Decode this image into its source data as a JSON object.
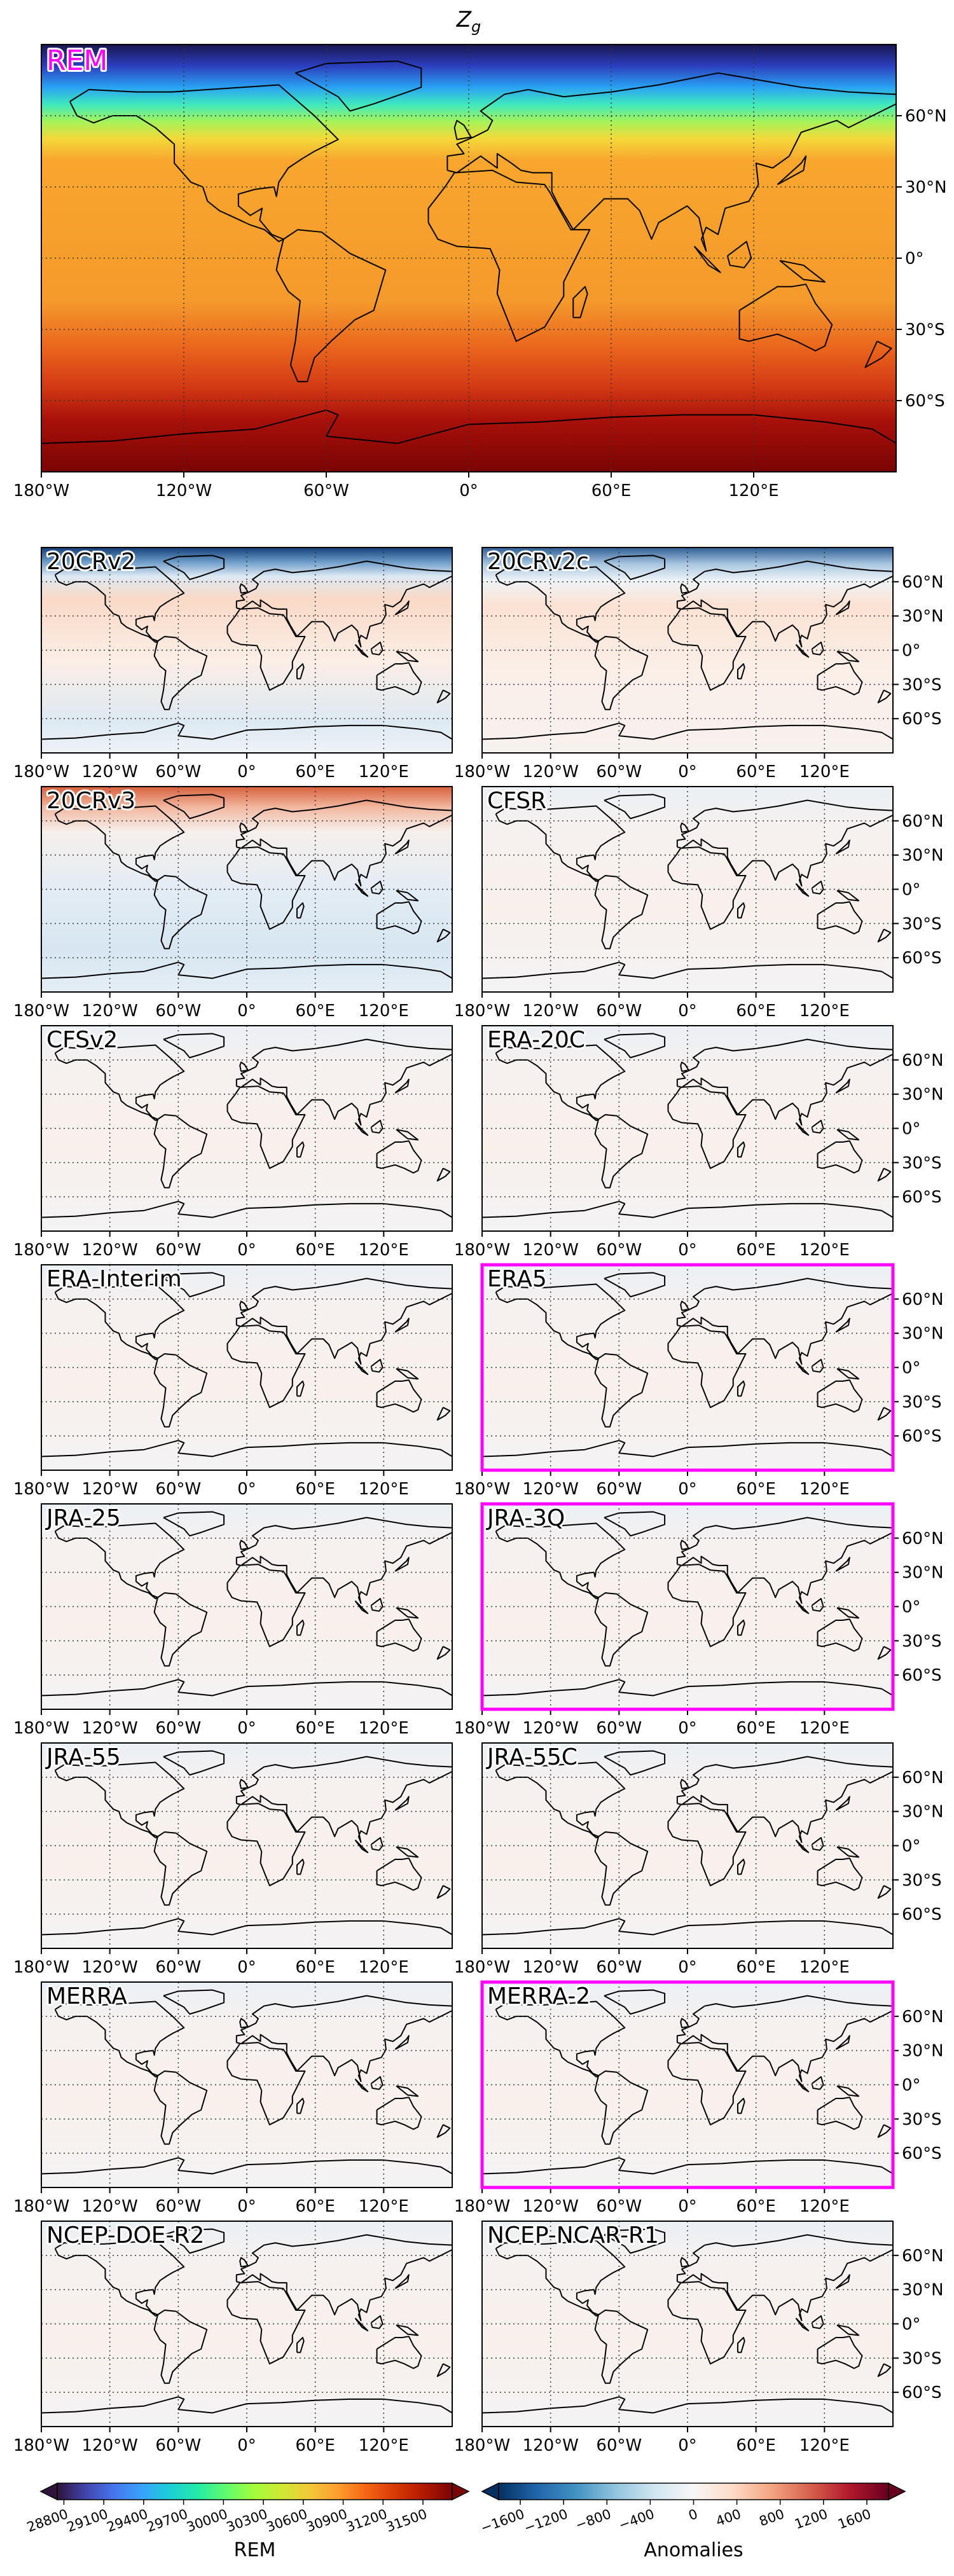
{
  "title": {
    "base": "Z",
    "subscript": "g"
  },
  "lon_lim": [
    -180,
    180
  ],
  "lat_lim": [
    -90,
    90
  ],
  "lon_ticks": [
    {
      "value": -180,
      "label": "180°W"
    },
    {
      "value": -120,
      "label": "120°W"
    },
    {
      "value": -60,
      "label": "60°W"
    },
    {
      "value": 0,
      "label": "0°"
    },
    {
      "value": 60,
      "label": "60°E"
    },
    {
      "value": 120,
      "label": "120°E"
    }
  ],
  "lat_ticks": [
    {
      "value": 60,
      "label": "60°N"
    },
    {
      "value": 30,
      "label": "30°N"
    },
    {
      "value": 0,
      "label": "0°"
    },
    {
      "value": -30,
      "label": "30°S"
    },
    {
      "value": -60,
      "label": "60°S"
    }
  ],
  "grid": true,
  "highlight_color": "#ff00ff",
  "main_panel": {
    "label": "REM",
    "label_color": "#ff00ff"
  },
  "panels": [
    {
      "label": "20CRv2",
      "highlight": false
    },
    {
      "label": "20CRv2c",
      "highlight": false
    },
    {
      "label": "20CRv3",
      "highlight": false
    },
    {
      "label": "CFSR",
      "highlight": false
    },
    {
      "label": "CFSv2",
      "highlight": false
    },
    {
      "label": "ERA-20C",
      "highlight": false
    },
    {
      "label": "ERA-Interim",
      "highlight": false
    },
    {
      "label": "ERA5",
      "highlight": true
    },
    {
      "label": "JRA-25",
      "highlight": false
    },
    {
      "label": "JRA-3Q",
      "highlight": true
    },
    {
      "label": "JRA-55",
      "highlight": false
    },
    {
      "label": "JRA-55C",
      "highlight": false
    },
    {
      "label": "MERRA",
      "highlight": false
    },
    {
      "label": "MERRA-2",
      "highlight": true
    },
    {
      "label": "NCEP-DOE-R2",
      "highlight": false
    },
    {
      "label": "NCEP-NCAR-R1",
      "highlight": false
    }
  ],
  "colorbars": [
    {
      "label": "REM",
      "colormap": "turbo",
      "lim": [
        28750,
        31720
      ],
      "ticks": [
        28800,
        29100,
        29400,
        29700,
        30000,
        30300,
        30600,
        30900,
        31200,
        31500
      ]
    },
    {
      "label": "Anomalies",
      "colormap": "RdBu_r",
      "lim": [
        -1800,
        1800
      ],
      "ticks": [
        {
          "value": -1600,
          "label": "−1600"
        },
        {
          "value": -1200,
          "label": "−1200"
        },
        {
          "value": -800,
          "label": "−800"
        },
        {
          "value": -400,
          "label": "−400"
        },
        0,
        400,
        800,
        1200,
        1600
      ]
    }
  ]
}
